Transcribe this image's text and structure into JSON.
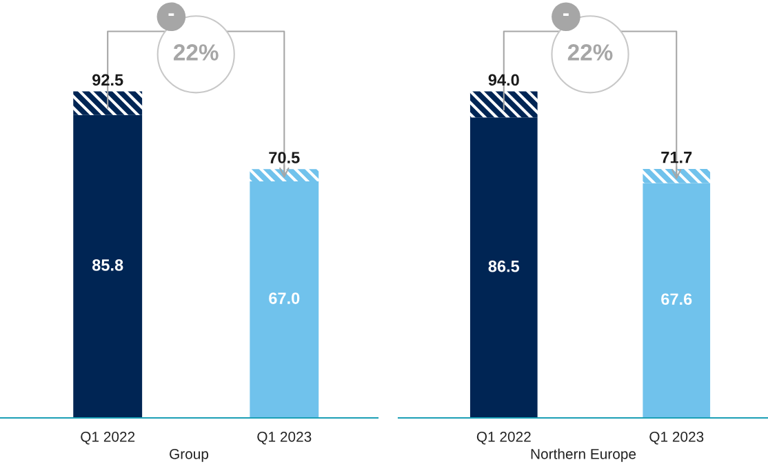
{
  "chart_data": [
    {
      "type": "bar",
      "stacked": true,
      "xlabel": "Group",
      "categories": [
        "Q1 2022",
        "Q1 2023"
      ],
      "data_labels": false,
      "totals": [
        "92.5",
        "70.5"
      ],
      "annotations": [
        "-",
        "22%"
      ],
      "series": [
        {
          "colors": [
            "#002554",
            "#70c2ec"
          ],
          "values": [
            85.8,
            67.0
          ],
          "value_labels": [
            "85.8",
            "67.0"
          ]
        },
        {
          "colors": [
            "#002554",
            "#70c2ec"
          ],
          "values": [
            6.7,
            3.5
          ]
        }
      ]
    },
    {
      "type": "bar",
      "stacked": true,
      "xlabel": "Northern Europe",
      "categories": [
        "Q1 2022",
        "Q1 2023"
      ],
      "data_labels": false,
      "totals": [
        "94.0",
        "71.7"
      ],
      "annotations": [
        "-",
        "22%"
      ],
      "series": [
        {
          "colors": [
            "#002554",
            "#70c2ec"
          ],
          "values": [
            86.5,
            67.6
          ],
          "value_labels": [
            "86.5",
            "67.6"
          ]
        },
        {
          "colors": [
            "#002554",
            "#70c2ec"
          ],
          "values": [
            7.5,
            4.1
          ]
        }
      ]
    }
  ]
}
